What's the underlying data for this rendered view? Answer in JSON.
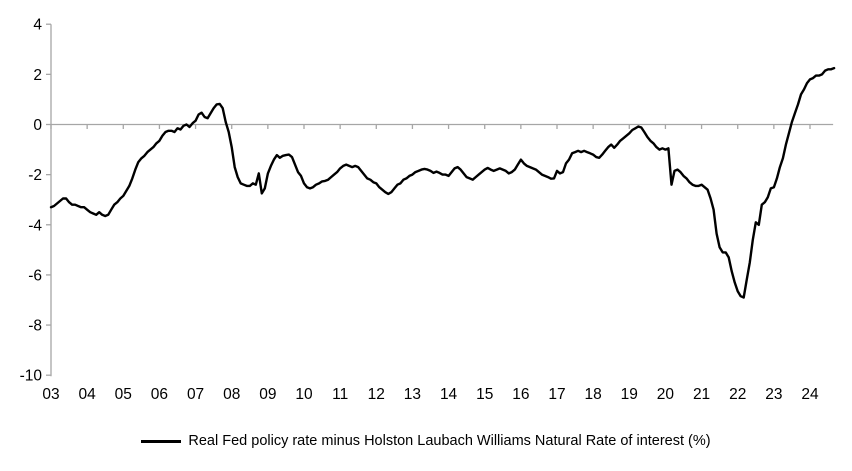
{
  "chart_data": {
    "type": "line",
    "title": "",
    "xlabel": "",
    "ylabel": "",
    "ylim": [
      -10,
      4
    ],
    "y_ticks": [
      4,
      2,
      0,
      -2,
      -4,
      -6,
      -8,
      -10
    ],
    "y_tick_labels": [
      "4",
      "2",
      "0",
      "-2",
      "-4",
      "-6",
      "-8",
      "-10"
    ],
    "x_tick_labels": [
      "03",
      "04",
      "05",
      "06",
      "07",
      "08",
      "09",
      "10",
      "11",
      "12",
      "13",
      "14",
      "15",
      "16",
      "17",
      "18",
      "19",
      "20",
      "21",
      "22",
      "23",
      "24"
    ],
    "x_start_year": 2003,
    "points_per_year": 12,
    "grid": false,
    "zero_line": true,
    "axis_color": "#a6a6a6",
    "line_color": "#000000",
    "legend_position": "bottom",
    "series": [
      {
        "name": "Real Fed policy rate minus Holston Laubach Williams Natural Rate of interest (%)",
        "color": "#000000",
        "values": [
          -3.3,
          -3.25,
          -3.15,
          -3.05,
          -2.95,
          -2.95,
          -3.1,
          -3.2,
          -3.2,
          -3.25,
          -3.3,
          -3.3,
          -3.4,
          -3.5,
          -3.55,
          -3.6,
          -3.5,
          -3.6,
          -3.65,
          -3.6,
          -3.4,
          -3.2,
          -3.1,
          -2.95,
          -2.85,
          -2.65,
          -2.45,
          -2.15,
          -1.8,
          -1.5,
          -1.35,
          -1.25,
          -1.1,
          -1.0,
          -0.9,
          -0.75,
          -0.65,
          -0.45,
          -0.3,
          -0.25,
          -0.25,
          -0.3,
          -0.15,
          -0.2,
          -0.05,
          0.0,
          -0.1,
          0.05,
          0.15,
          0.4,
          0.47,
          0.3,
          0.25,
          0.45,
          0.65,
          0.8,
          0.82,
          0.65,
          0.1,
          -0.3,
          -0.9,
          -1.7,
          -2.1,
          -2.35,
          -2.4,
          -2.45,
          -2.45,
          -2.35,
          -2.4,
          -1.95,
          -2.75,
          -2.55,
          -1.95,
          -1.65,
          -1.4,
          -1.22,
          -1.33,
          -1.25,
          -1.22,
          -1.2,
          -1.3,
          -1.6,
          -1.9,
          -2.05,
          -2.35,
          -2.5,
          -2.55,
          -2.5,
          -2.4,
          -2.35,
          -2.27,
          -2.25,
          -2.2,
          -2.1,
          -2.0,
          -1.9,
          -1.75,
          -1.65,
          -1.6,
          -1.65,
          -1.7,
          -1.65,
          -1.7,
          -1.85,
          -2.0,
          -2.15,
          -2.2,
          -2.3,
          -2.35,
          -2.5,
          -2.6,
          -2.7,
          -2.77,
          -2.7,
          -2.55,
          -2.4,
          -2.35,
          -2.2,
          -2.15,
          -2.05,
          -2.0,
          -1.9,
          -1.85,
          -1.8,
          -1.77,
          -1.8,
          -1.85,
          -1.93,
          -1.88,
          -1.93,
          -2.0,
          -2.0,
          -2.05,
          -1.9,
          -1.75,
          -1.7,
          -1.8,
          -1.95,
          -2.1,
          -2.15,
          -2.2,
          -2.1,
          -2.0,
          -1.9,
          -1.8,
          -1.73,
          -1.8,
          -1.85,
          -1.8,
          -1.75,
          -1.8,
          -1.85,
          -1.95,
          -1.9,
          -1.8,
          -1.6,
          -1.4,
          -1.55,
          -1.65,
          -1.7,
          -1.75,
          -1.8,
          -1.9,
          -2.0,
          -2.05,
          -2.1,
          -2.16,
          -2.15,
          -1.85,
          -1.95,
          -1.9,
          -1.55,
          -1.4,
          -1.15,
          -1.1,
          -1.05,
          -1.1,
          -1.05,
          -1.1,
          -1.15,
          -1.2,
          -1.3,
          -1.33,
          -1.2,
          -1.05,
          -0.9,
          -0.8,
          -0.93,
          -0.8,
          -0.65,
          -0.55,
          -0.45,
          -0.35,
          -0.22,
          -0.15,
          -0.08,
          -0.12,
          -0.3,
          -0.5,
          -0.65,
          -0.75,
          -0.9,
          -1.0,
          -0.95,
          -1.0,
          -0.95,
          -2.4,
          -1.85,
          -1.8,
          -1.9,
          -2.05,
          -2.15,
          -2.3,
          -2.4,
          -2.45,
          -2.45,
          -2.4,
          -2.5,
          -2.6,
          -2.95,
          -3.4,
          -4.35,
          -4.9,
          -5.1,
          -5.1,
          -5.3,
          -5.85,
          -6.3,
          -6.65,
          -6.85,
          -6.9,
          -6.2,
          -5.5,
          -4.6,
          -3.9,
          -4.0,
          -3.2,
          -3.1,
          -2.9,
          -2.55,
          -2.5,
          -2.15,
          -1.7,
          -1.35,
          -0.8,
          -0.35,
          0.1,
          0.45,
          0.8,
          1.2,
          1.4,
          1.65,
          1.8,
          1.85,
          1.95,
          1.95,
          2.0,
          2.15,
          2.2,
          2.2,
          2.25
        ]
      }
    ]
  },
  "legend": {
    "label": "Real Fed policy rate minus Holston Laubach Williams Natural Rate of interest (%)"
  }
}
